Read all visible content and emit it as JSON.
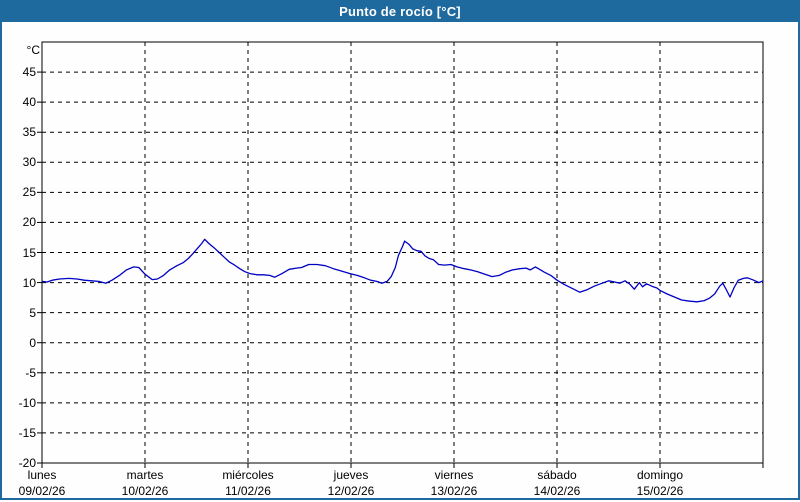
{
  "window": {
    "title": "Punto de rocío [°C]",
    "colors": {
      "frame": "#1e699e",
      "title_text": "#ffffff",
      "background": "#fdfefd",
      "plot_border": "#000000",
      "grid": "#000000",
      "line": "#0000c4"
    }
  },
  "chart_data": {
    "type": "line",
    "title": "Punto de rocío [°C]",
    "ylabel": "°C",
    "xlabel": "",
    "ylim": [
      -20,
      50
    ],
    "y_tick_values": [
      45,
      40,
      35,
      30,
      25,
      20,
      15,
      10,
      5,
      0,
      -5,
      -10,
      -15,
      -20
    ],
    "grid": "dashed",
    "legend_position": "none",
    "x_axis": {
      "days": [
        {
          "name": "lunes",
          "date": "09/02/26"
        },
        {
          "name": "martes",
          "date": "10/02/26"
        },
        {
          "name": "miércoles",
          "date": "11/02/26"
        },
        {
          "name": "jueves",
          "date": "12/02/26"
        },
        {
          "name": "viernes",
          "date": "13/02/26"
        },
        {
          "name": "sábado",
          "date": "14/02/26"
        },
        {
          "name": "domingo",
          "date": "15/02/26"
        }
      ]
    },
    "series": [
      {
        "name": "Punto de rocío",
        "color": "#0000c4",
        "points": [
          [
            0.0,
            10.2
          ],
          [
            0.05,
            10.1
          ],
          [
            0.1,
            10.4
          ],
          [
            0.17,
            10.6
          ],
          [
            0.26,
            10.7
          ],
          [
            0.34,
            10.6
          ],
          [
            0.41,
            10.4
          ],
          [
            0.48,
            10.3
          ],
          [
            0.55,
            10.2
          ],
          [
            0.62,
            9.9
          ],
          [
            0.68,
            10.4
          ],
          [
            0.76,
            11.3
          ],
          [
            0.82,
            12.1
          ],
          [
            0.89,
            12.6
          ],
          [
            0.94,
            12.5
          ],
          [
            1.0,
            11.4
          ],
          [
            1.07,
            10.5
          ],
          [
            1.12,
            10.6
          ],
          [
            1.18,
            11.2
          ],
          [
            1.24,
            12.1
          ],
          [
            1.31,
            12.8
          ],
          [
            1.37,
            13.3
          ],
          [
            1.42,
            14.0
          ],
          [
            1.47,
            14.9
          ],
          [
            1.51,
            15.7
          ],
          [
            1.55,
            16.5
          ],
          [
            1.58,
            17.2
          ],
          [
            1.62,
            16.5
          ],
          [
            1.67,
            15.8
          ],
          [
            1.72,
            15.0
          ],
          [
            1.77,
            14.2
          ],
          [
            1.82,
            13.4
          ],
          [
            1.87,
            12.9
          ],
          [
            1.92,
            12.3
          ],
          [
            1.97,
            11.8
          ],
          [
            2.02,
            11.5
          ],
          [
            2.09,
            11.3
          ],
          [
            2.15,
            11.3
          ],
          [
            2.21,
            11.2
          ],
          [
            2.26,
            10.9
          ],
          [
            2.33,
            11.5
          ],
          [
            2.4,
            12.2
          ],
          [
            2.47,
            12.4
          ],
          [
            2.52,
            12.5
          ],
          [
            2.59,
            13.0
          ],
          [
            2.67,
            13.0
          ],
          [
            2.75,
            12.8
          ],
          [
            2.83,
            12.3
          ],
          [
            2.91,
            11.9
          ],
          [
            2.99,
            11.5
          ],
          [
            3.06,
            11.2
          ],
          [
            3.13,
            10.8
          ],
          [
            3.19,
            10.4
          ],
          [
            3.25,
            10.2
          ],
          [
            3.3,
            9.9
          ],
          [
            3.35,
            10.2
          ],
          [
            3.39,
            11.0
          ],
          [
            3.43,
            12.5
          ],
          [
            3.46,
            14.5
          ],
          [
            3.5,
            16.0
          ],
          [
            3.52,
            16.9
          ],
          [
            3.56,
            16.4
          ],
          [
            3.6,
            15.6
          ],
          [
            3.64,
            15.3
          ],
          [
            3.68,
            15.2
          ],
          [
            3.72,
            14.4
          ],
          [
            3.76,
            14.0
          ],
          [
            3.8,
            13.8
          ],
          [
            3.85,
            13.0
          ],
          [
            3.91,
            12.9
          ],
          [
            3.97,
            13.0
          ],
          [
            4.03,
            12.6
          ],
          [
            4.1,
            12.3
          ],
          [
            4.16,
            12.1
          ],
          [
            4.23,
            11.8
          ],
          [
            4.3,
            11.4
          ],
          [
            4.37,
            11.0
          ],
          [
            4.44,
            11.2
          ],
          [
            4.5,
            11.7
          ],
          [
            4.57,
            12.1
          ],
          [
            4.64,
            12.3
          ],
          [
            4.7,
            12.4
          ],
          [
            4.74,
            12.1
          ],
          [
            4.79,
            12.6
          ],
          [
            4.83,
            12.2
          ],
          [
            4.88,
            11.7
          ],
          [
            4.94,
            11.2
          ],
          [
            5.0,
            10.4
          ],
          [
            5.07,
            9.7
          ],
          [
            5.15,
            9.0
          ],
          [
            5.22,
            8.4
          ],
          [
            5.29,
            8.8
          ],
          [
            5.36,
            9.4
          ],
          [
            5.44,
            9.9
          ],
          [
            5.5,
            10.3
          ],
          [
            5.56,
            10.1
          ],
          [
            5.61,
            9.9
          ],
          [
            5.66,
            10.3
          ],
          [
            5.71,
            9.7
          ],
          [
            5.75,
            8.9
          ],
          [
            5.8,
            10.0
          ],
          [
            5.83,
            9.3
          ],
          [
            5.87,
            9.8
          ],
          [
            5.92,
            9.4
          ],
          [
            5.97,
            9.1
          ],
          [
            6.0,
            8.7
          ],
          [
            6.07,
            8.1
          ],
          [
            6.14,
            7.6
          ],
          [
            6.21,
            7.1
          ],
          [
            6.29,
            6.9
          ],
          [
            6.36,
            6.8
          ],
          [
            6.43,
            7.0
          ],
          [
            6.48,
            7.4
          ],
          [
            6.53,
            8.1
          ],
          [
            6.58,
            9.4
          ],
          [
            6.61,
            9.9
          ],
          [
            6.65,
            8.6
          ],
          [
            6.68,
            7.6
          ],
          [
            6.72,
            9.2
          ],
          [
            6.76,
            10.4
          ],
          [
            6.81,
            10.7
          ],
          [
            6.85,
            10.8
          ],
          [
            6.91,
            10.4
          ],
          [
            6.96,
            10.0
          ],
          [
            7.0,
            10.3
          ]
        ]
      }
    ]
  }
}
